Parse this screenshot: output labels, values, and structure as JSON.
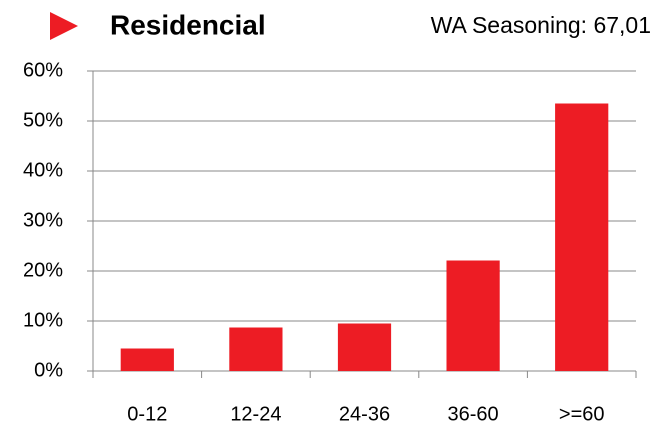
{
  "chart_data": {
    "type": "bar",
    "title": "Residencial",
    "subtitle": "WA Seasoning: 67,01",
    "categories": [
      "0-12",
      "12-24",
      "24-36",
      "36-60",
      ">=60"
    ],
    "values": [
      4.5,
      8.7,
      9.5,
      22.1,
      53.5
    ],
    "color": "#ed1c24",
    "ylim": [
      0,
      60
    ],
    "yticks": [
      {
        "value": 0,
        "label": "0%"
      },
      {
        "value": 10,
        "label": "10%"
      },
      {
        "value": 20,
        "label": "20%"
      },
      {
        "value": 30,
        "label": "30%"
      },
      {
        "value": 40,
        "label": "40%"
      },
      {
        "value": 50,
        "label": "50%"
      },
      {
        "value": 60,
        "label": "60%"
      }
    ],
    "grid": true
  }
}
